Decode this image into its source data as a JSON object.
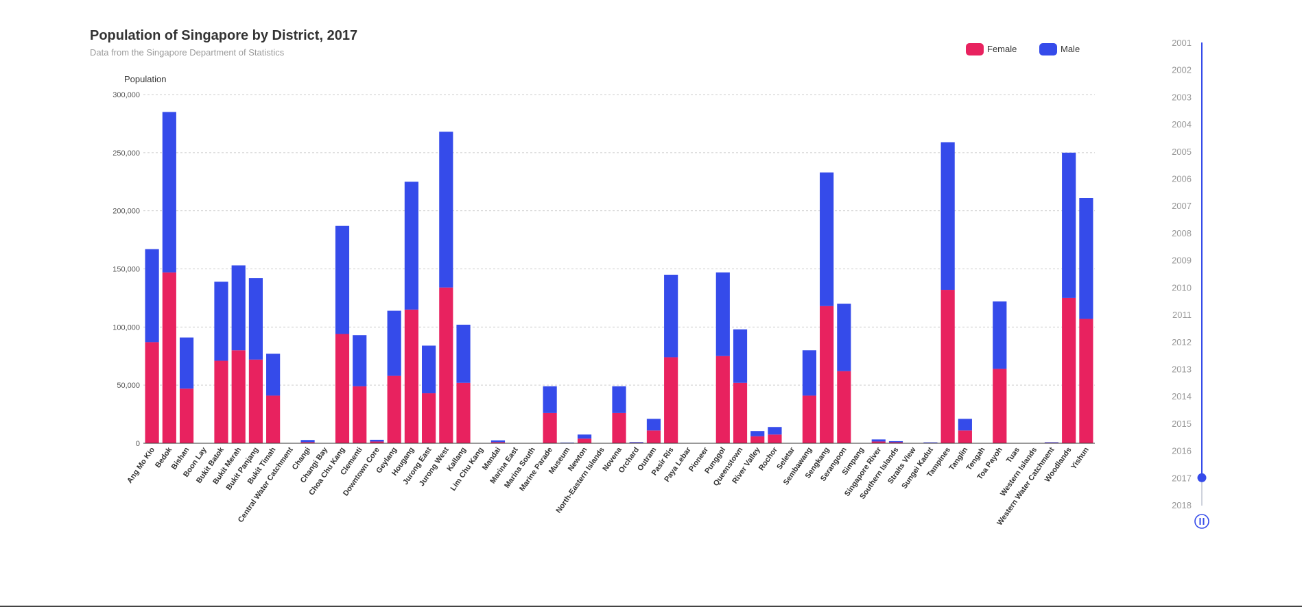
{
  "colors": {
    "female": "#e8225f",
    "male": "#354bea",
    "timeline": "#354bea"
  },
  "chart_data": {
    "type": "bar",
    "stacked": true,
    "title": "Population of Singapore by District, 2017",
    "subtitle": "Data from the Singapore Department of Statistics",
    "ylabel": "Population",
    "xlabel": "",
    "ylim": [
      0,
      300000
    ],
    "yticks": [
      0,
      50000,
      100000,
      150000,
      200000,
      250000,
      300000
    ],
    "ytick_labels": [
      "0",
      "50,000",
      "100,000",
      "150,000",
      "200,000",
      "250,000",
      "300,000"
    ],
    "grid": true,
    "legend_position": "top-right",
    "categories": [
      "Ang Mo Kio",
      "Bedok",
      "Bishan",
      "Boon Lay",
      "Bukit Batok",
      "Bukit Merah",
      "Bukit Panjang",
      "Bukit Timah",
      "Central Water Catchment",
      "Changi",
      "Changi Bay",
      "Choa Chu Kang",
      "Clementi",
      "Downtown Core",
      "Geylang",
      "Hougang",
      "Jurong East",
      "Jurong West",
      "Kallang",
      "Lim Chu Kang",
      "Mandai",
      "Marina East",
      "Marina South",
      "Marine Parade",
      "Museum",
      "Newton",
      "North-Eastern Islands",
      "Novena",
      "Orchard",
      "Outram",
      "Pasir Ris",
      "Paya Lebar",
      "Pioneer",
      "Punggol",
      "Queenstown",
      "River Valley",
      "Rochor",
      "Seletar",
      "Sembawang",
      "Sengkang",
      "Serangoon",
      "Simpang",
      "Singapore River",
      "Southern Islands",
      "Straits View",
      "Sungei Kadut",
      "Tampines",
      "Tanglin",
      "Tengah",
      "Toa Payoh",
      "Tuas",
      "Western Islands",
      "Western Water Catchment",
      "Woodlands",
      "Yishun"
    ],
    "series": [
      {
        "name": "Female",
        "values": [
          87000,
          147000,
          47000,
          0,
          71000,
          80000,
          72000,
          41000,
          0,
          1000,
          0,
          94000,
          49000,
          1500,
          58000,
          115000,
          43000,
          134000,
          52000,
          0,
          1000,
          0,
          0,
          26000,
          300,
          4000,
          0,
          26000,
          500,
          11000,
          74000,
          0,
          0,
          75000,
          52000,
          6000,
          7500,
          0,
          41000,
          118000,
          62000,
          0,
          1500,
          900,
          0,
          400,
          132000,
          11000,
          0,
          64000,
          0,
          0,
          500,
          125000,
          107000
        ]
      },
      {
        "name": "Male",
        "values": [
          80000,
          138000,
          44000,
          0,
          68000,
          73000,
          70000,
          36000,
          0,
          1800,
          0,
          93000,
          44000,
          1500,
          56000,
          110000,
          41000,
          134000,
          50000,
          0,
          1500,
          0,
          0,
          23000,
          300,
          3500,
          0,
          23000,
          500,
          10000,
          71000,
          0,
          0,
          72000,
          46000,
          4500,
          6500,
          0,
          39000,
          115000,
          58000,
          0,
          1800,
          900,
          0,
          400,
          127000,
          10000,
          0,
          58000,
          0,
          0,
          400,
          125000,
          104000
        ]
      }
    ]
  },
  "legend": {
    "female_label": "Female",
    "male_label": "Male"
  },
  "timeline": {
    "years": [
      "2001",
      "2002",
      "2003",
      "2004",
      "2005",
      "2006",
      "2007",
      "2008",
      "2009",
      "2010",
      "2011",
      "2012",
      "2013",
      "2014",
      "2015",
      "2016",
      "2017",
      "2018"
    ],
    "selected_year": "2017",
    "play_state": "playing",
    "play_icon": "pause-icon"
  }
}
